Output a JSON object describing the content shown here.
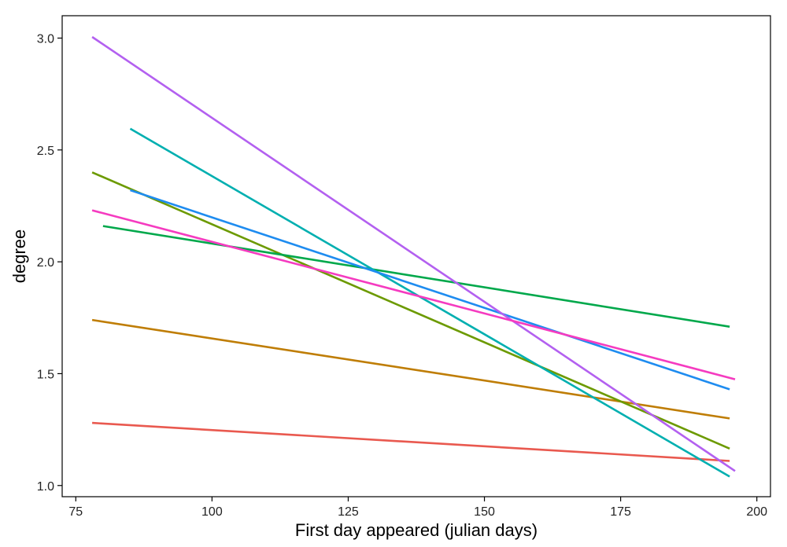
{
  "chart_data": {
    "type": "line",
    "title": "",
    "xlabel": "First day appeared (julian days)",
    "ylabel": "degree",
    "xlim": [
      72.5,
      202.5
    ],
    "ylim": [
      0.95,
      3.1
    ],
    "x_ticks": [
      75,
      100,
      125,
      150,
      175,
      200
    ],
    "y_ticks": [
      1.0,
      1.5,
      2.0,
      2.5,
      3.0
    ],
    "x_tick_labels": [
      "75",
      "100",
      "125",
      "150",
      "175",
      "200"
    ],
    "y_tick_labels": [
      "1.0",
      "1.5",
      "2.0",
      "2.5",
      "3.0"
    ],
    "grid": false,
    "legend": "none",
    "series": [
      {
        "color": "#E9594F",
        "x": [
          78,
          195
        ],
        "y": [
          1.28,
          1.11
        ]
      },
      {
        "color": "#BF7D05",
        "x": [
          78,
          195
        ],
        "y": [
          1.74,
          1.3
        ]
      },
      {
        "color": "#6C9A00",
        "x": [
          78,
          195
        ],
        "y": [
          2.4,
          1.165
        ]
      },
      {
        "color": "#00A84B",
        "x": [
          80,
          195
        ],
        "y": [
          2.16,
          1.71
        ]
      },
      {
        "color": "#00AFB0",
        "x": [
          85,
          195
        ],
        "y": [
          2.595,
          1.04
        ]
      },
      {
        "color": "#1E8CF0",
        "x": [
          85,
          195
        ],
        "y": [
          2.32,
          1.43
        ]
      },
      {
        "color": "#B360F0",
        "x": [
          78,
          196
        ],
        "y": [
          3.005,
          1.065
        ]
      },
      {
        "color": "#F53BC0",
        "x": [
          78,
          196
        ],
        "y": [
          2.23,
          1.475
        ]
      }
    ]
  }
}
